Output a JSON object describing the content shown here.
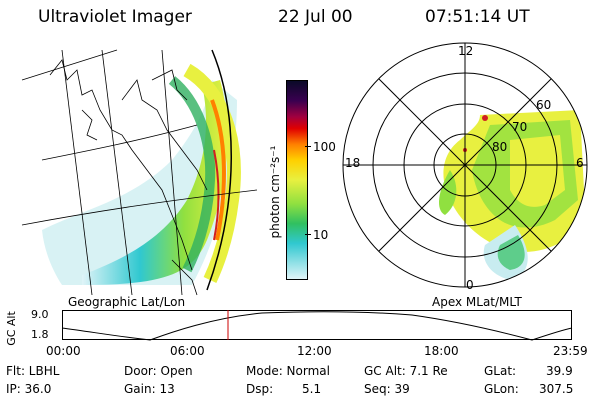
{
  "header": {
    "title": "Ultraviolet Imager",
    "date": "22 Jul 00",
    "time": "07:51:14 UT"
  },
  "colorbar": {
    "unit_label": "photon cm⁻²s⁻¹",
    "ticks": [
      "100",
      "10"
    ],
    "colors": [
      "#0a0a28",
      "#3a0050",
      "#a00040",
      "#e00000",
      "#ff8000",
      "#ffd000",
      "#e8f040",
      "#90e040",
      "#30c060",
      "#30c8d0",
      "#e0f4f8"
    ]
  },
  "left_panel": {
    "label": "Geographic Lat/Lon"
  },
  "right_panel": {
    "label": "Apex MLat/MLT",
    "mlt_labels": {
      "top": "12",
      "left": "18",
      "right": "6",
      "bottom": "0"
    },
    "lat_labels": [
      "60",
      "70",
      "80"
    ]
  },
  "timeline": {
    "ylabel": "GC Alt",
    "y_ticks": [
      "9.0",
      "1.8"
    ],
    "x_ticks": [
      "00:00",
      "06:00",
      "12:00",
      "18:00",
      "23:59"
    ],
    "marker_color": "#cc0000",
    "marker_time": "07:51"
  },
  "footer": {
    "flt": "Flt: LBHL",
    "ip": "IP: 36.0",
    "door": "Door: Open",
    "gain": "Gain: 13",
    "mode": "Mode: Normal",
    "dsp": "Dsp:",
    "dsp_val": "5.1",
    "gcalt": "GC Alt: 7.1 Re",
    "seq": "Seq: 39",
    "glat": "GLat:",
    "glat_val": "39.9",
    "glon": "GLon:",
    "glon_val": "307.5"
  }
}
